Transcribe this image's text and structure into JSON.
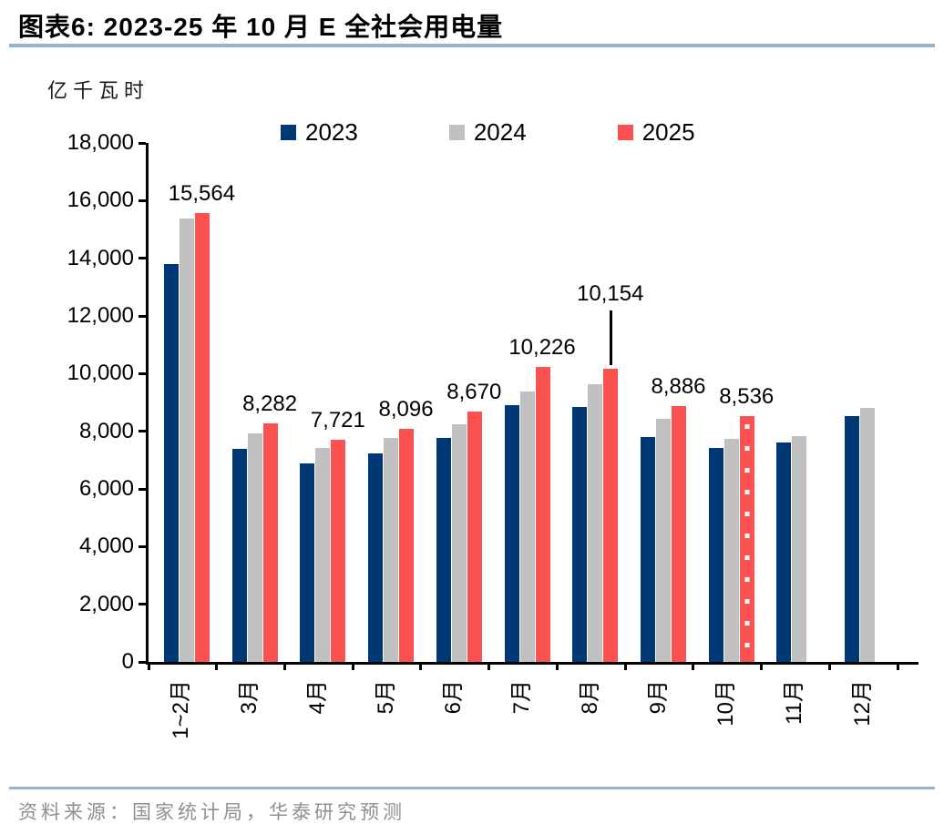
{
  "page": {
    "title": "图表6:  2023-25 年 10 月 E 全社会用电量",
    "unit_label": "亿千瓦时",
    "source": "资料来源：国家统计局，华泰研究预测"
  },
  "colors": {
    "title_rule": "#9ab3cc",
    "source_rule": "#9ab3cc",
    "axis": "#000000",
    "series_2023": "#003876",
    "series_2024": "#c0c0c0",
    "series_2025": "#fc5151",
    "source_text": "#8f8f8f"
  },
  "chart_data": {
    "type": "bar",
    "title": "2023-25 年 10 月 E 全社会用电量",
    "ylabel": "亿千瓦时",
    "xlabel": "",
    "ylim": [
      0,
      18000
    ],
    "yticks": [
      0,
      2000,
      4000,
      6000,
      8000,
      10000,
      12000,
      14000,
      16000,
      18000
    ],
    "ytick_labels": [
      "0",
      "2,000",
      "4,000",
      "6,000",
      "8,000",
      "10,000",
      "12,000",
      "14,000",
      "16,000",
      "18,000"
    ],
    "categories": [
      "1~2月",
      "3月",
      "4月",
      "5月",
      "6月",
      "7月",
      "8月",
      "9月",
      "10月",
      "11月",
      "12月"
    ],
    "series": [
      {
        "name": "2023",
        "color": "#003876",
        "values": [
          13800,
          7390,
          6900,
          7220,
          7780,
          8890,
          8830,
          7810,
          7430,
          7620,
          8520
        ]
      },
      {
        "name": "2024",
        "color": "#c0c0c0",
        "values": [
          15380,
          7940,
          7420,
          7780,
          8230,
          9390,
          9630,
          8420,
          7740,
          7830,
          8800
        ]
      },
      {
        "name": "2025",
        "color": "#fc5151",
        "values": [
          15564,
          8282,
          7721,
          8096,
          8670,
          10226,
          10154,
          8886,
          8536,
          null,
          null
        ],
        "labels": [
          "15,564",
          "8,282",
          "7,721",
          "8,096",
          "8,670",
          "10,226",
          "10,154",
          "8,886",
          "8,536",
          null,
          null
        ]
      }
    ],
    "forecast": {
      "series": "2025",
      "category": "10月",
      "style": "dotted-bar"
    },
    "label_leader_line": {
      "series": "2025",
      "category": "8月"
    },
    "legend_position": "top",
    "grid": false
  }
}
